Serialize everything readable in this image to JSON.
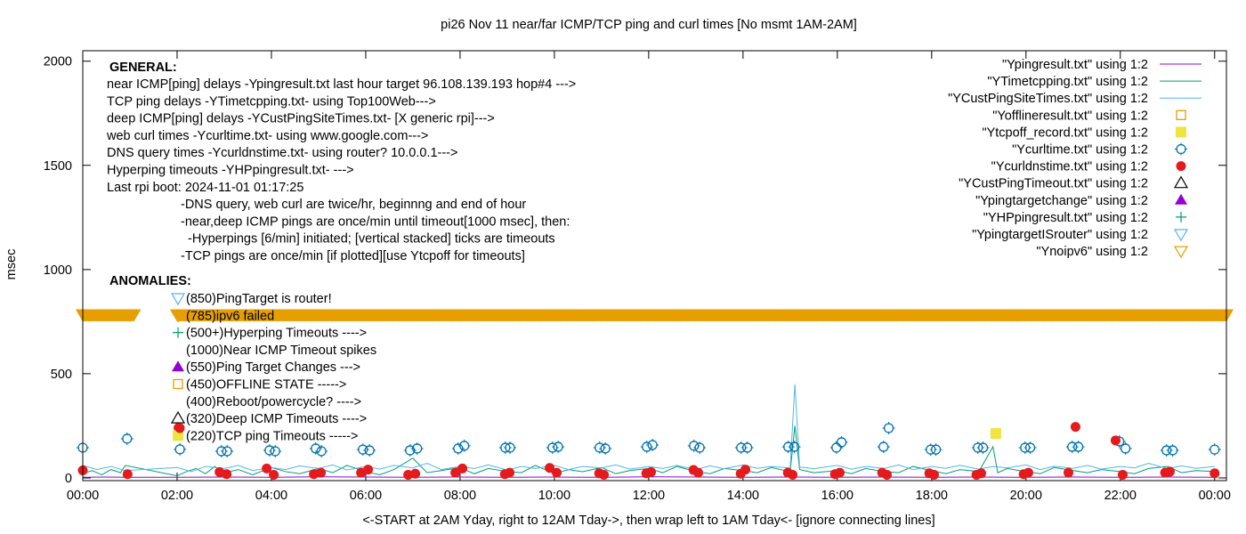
{
  "chart_data": {
    "type": "line",
    "title": "pi26 Nov 11  near/far ICMP/TCP ping and curl times [No msmt 1AM-2AM]",
    "xlabel": "<-START at 2AM Yday, right to 12AM Tday->, then wrap left to 1AM Tday<- [ignore connecting lines]",
    "ylabel": "msec",
    "xlim": [
      0,
      24.25
    ],
    "ylim": [
      -13,
      2050
    ],
    "x_ticks": [
      "00:00",
      "02:00",
      "04:00",
      "06:00",
      "08:00",
      "10:00",
      "12:00",
      "14:00",
      "16:00",
      "18:00",
      "20:00",
      "22:00",
      "00:00"
    ],
    "y_ticks": [
      0,
      500,
      1000,
      1500,
      2000
    ],
    "grid": false,
    "legend_placement": "top-right",
    "notes_general": {
      "heading": "GENERAL:",
      "lines": [
        "near ICMP[ping] delays -Ypingresult.txt last hour target 96.108.139.193 hop#4 --->",
        "TCP ping delays -YTimetcpping.txt- using Top100Web--->",
        "deep ICMP[ping] delays -YCustPingSiteTimes.txt- [X generic rpi]--->",
        "web curl times -Ycurltime.txt- using www.google.com--->",
        "DNS query times -Ycurldnstime.txt- using router? 10.0.0.1--->",
        "Hyperping timeouts -YHPpingresult.txt- --->",
        "Last rpi boot: 2024-11-01 01:17:25"
      ],
      "indented": [
        "-DNS query, web curl are twice/hr, beginnng and end of hour",
        "-near,deep ICMP pings are once/min until timeout[1000 msec], then:",
        "  -Hyperpings [6/min] initiated; [vertical stacked] ticks are timeouts",
        "-TCP pings are once/min [if plotted][use Ytcpoff for timeouts]"
      ]
    },
    "notes_anomalies": {
      "heading": "ANOMALIES:",
      "items": [
        {
          "marker": "triangle-down-open",
          "color": "#56b4e9",
          "text": "(850)PingTarget is router!"
        },
        {
          "marker": "triangle-down-open",
          "color": "#e69f00",
          "text": "(785)ipv6 failed"
        },
        {
          "marker": "plus",
          "color": "#009e73",
          "text": "(500+)Hyperping Timeouts ---->"
        },
        {
          "marker": "none",
          "color": "",
          "text": "(1000)Near ICMP Timeout spikes"
        },
        {
          "marker": "triangle-up-filled",
          "color": "#9400d3",
          "text": "(550)Ping Target Changes --->"
        },
        {
          "marker": "square-open",
          "color": "#e69f00",
          "text": "(450)OFFLINE STATE ----->"
        },
        {
          "marker": "none",
          "color": "",
          "text": "(400)Reboot/powercycle? ---->"
        },
        {
          "marker": "triangle-up-open",
          "color": "#000000",
          "text": "(320)Deep ICMP Timeouts ---->"
        },
        {
          "marker": "square-filled",
          "color": "#f0e442",
          "text": "(220)TCP ping Timeouts ----->"
        }
      ]
    },
    "series": [
      {
        "name": "\"Ypingresult.txt\" using 1:2",
        "style": "line",
        "color": "#9400d3",
        "x": [
          0,
          0.5,
          0.9,
          2.0,
          3,
          4,
          5,
          6,
          7,
          8,
          9,
          10,
          11,
          12,
          13,
          14,
          15,
          16,
          17,
          18,
          19,
          20,
          21,
          22,
          23,
          24
        ],
        "y": [
          3,
          4,
          3,
          3,
          4,
          3,
          5,
          4,
          3,
          4,
          3,
          4,
          3,
          5,
          4,
          3,
          4,
          3,
          4,
          3,
          4,
          3,
          4,
          3,
          4,
          3
        ]
      },
      {
        "name": "\"YTimetcpping.txt\" using 1:2",
        "style": "line",
        "color": "#009e73",
        "x": [
          0,
          0.2,
          0.4,
          0.6,
          0.8,
          0.9,
          2.0,
          2.2,
          2.4,
          2.6,
          2.8,
          3,
          3.3,
          3.6,
          4,
          4.3,
          4.6,
          5,
          5.3,
          5.6,
          6,
          6.3,
          6.6,
          7,
          7.3,
          7.6,
          8,
          8.3,
          8.6,
          9,
          9.3,
          9.6,
          10,
          10.3,
          10.6,
          11,
          11.3,
          11.6,
          12,
          12.3,
          12.6,
          13,
          13.3,
          13.6,
          14,
          14.3,
          14.6,
          15,
          15.1,
          15.2,
          15.5,
          16,
          16.3,
          16.6,
          17,
          17.3,
          17.6,
          18,
          18.3,
          18.6,
          19,
          19.3,
          19.4,
          19.6,
          20,
          20.3,
          20.6,
          21,
          21.3,
          21.6,
          22,
          22.3,
          22.6,
          23,
          23.3,
          23.6,
          24
        ],
        "y": [
          20,
          35,
          15,
          40,
          25,
          60,
          10,
          30,
          45,
          20,
          55,
          25,
          40,
          15,
          50,
          30,
          20,
          45,
          25,
          60,
          30,
          15,
          40,
          95,
          25,
          35,
          50,
          20,
          45,
          30,
          25,
          60,
          20,
          40,
          30,
          50,
          20,
          35,
          45,
          25,
          55,
          30,
          20,
          45,
          35,
          25,
          50,
          30,
          250,
          40,
          25,
          35,
          20,
          45,
          30,
          25,
          55,
          35,
          20,
          40,
          30,
          150,
          25,
          45,
          30,
          20,
          50,
          35,
          25,
          40,
          30,
          20,
          45,
          55,
          25,
          35,
          30
        ]
      },
      {
        "name": "\"YCustPingSiteTimes.txt\" using 1:2",
        "style": "line",
        "color": "#56b4e9",
        "x": [
          0,
          0.3,
          0.6,
          0.9,
          2.0,
          2.3,
          2.6,
          3,
          3.3,
          3.6,
          4,
          4.3,
          4.6,
          5,
          5.3,
          5.6,
          6,
          6.3,
          6.6,
          7,
          7.3,
          7.6,
          8,
          8.3,
          8.6,
          9,
          9.3,
          9.6,
          10,
          10.3,
          10.6,
          11,
          11.3,
          11.6,
          12,
          12.3,
          12.6,
          13,
          13.3,
          13.6,
          14,
          14.3,
          14.6,
          15,
          15.1,
          15.2,
          15.5,
          16,
          16.3,
          16.6,
          17,
          17.3,
          17.6,
          18,
          18.3,
          18.6,
          19,
          19.3,
          19.6,
          20,
          20.3,
          20.6,
          21,
          21.3,
          21.6,
          22,
          22.3,
          22.6,
          23,
          23.3,
          23.6,
          24
        ],
        "y": [
          60,
          40,
          55,
          35,
          50,
          30,
          55,
          45,
          60,
          35,
          50,
          40,
          58,
          45,
          62,
          38,
          55,
          42,
          60,
          48,
          70,
          40,
          55,
          45,
          62,
          38,
          55,
          45,
          60,
          40,
          55,
          48,
          62,
          42,
          55,
          45,
          60,
          40,
          58,
          44,
          62,
          46,
          55,
          48,
          450,
          52,
          44,
          60,
          42,
          55,
          46,
          62,
          40,
          55,
          46,
          60,
          42,
          55,
          48,
          62,
          40,
          56,
          46,
          60,
          42,
          55,
          48,
          70,
          44,
          58,
          46,
          55
        ]
      },
      {
        "name": "\"Yofflineresult.txt\" using 1:2",
        "style": "square-open",
        "color": "#e69f00",
        "x": [],
        "y": []
      },
      {
        "name": "\"Ytcpoff_record.txt\" using 1:2",
        "style": "square-filled",
        "color": "#f0e442",
        "x": [
          19.36
        ],
        "y": [
          213
        ]
      },
      {
        "name": "\"Ycurltime.txt\" using 1:2",
        "style": "circle-open",
        "color": "#0072b2",
        "x": [
          0,
          0.94,
          2.06,
          2.94,
          3.06,
          3.96,
          4.08,
          4.94,
          5.06,
          5.94,
          6.08,
          6.94,
          7.09,
          7.96,
          8.09,
          8.96,
          9.06,
          9.96,
          10.08,
          10.96,
          11.08,
          11.96,
          12.08,
          12.96,
          13.08,
          13.96,
          14.09,
          14.96,
          15.09,
          15.98,
          16.09,
          16.98,
          17.09,
          17.98,
          18.09,
          18.98,
          19.09,
          19.98,
          20.09,
          20.98,
          21.11,
          21.98,
          22.11,
          22.98,
          23.11,
          24.0
        ],
        "y": [
          145,
          188,
          137,
          128,
          128,
          132,
          128,
          141,
          128,
          136,
          132,
          132,
          141,
          141,
          154,
          145,
          145,
          145,
          149,
          145,
          141,
          149,
          158,
          154,
          145,
          145,
          145,
          149,
          149,
          145,
          171,
          149,
          239,
          136,
          136,
          145,
          145,
          145,
          145,
          149,
          149,
          175,
          141,
          132,
          132,
          136
        ]
      },
      {
        "name": "\"Ycurldnstime.txt\" using 1:2",
        "style": "circle-filled",
        "color": "#e41a1c",
        "x": [
          0.0,
          0.95,
          2.03,
          2.9,
          3.05,
          3.9,
          4.05,
          4.9,
          5.05,
          5.9,
          6.05,
          6.9,
          7.05,
          7.9,
          8.05,
          8.95,
          9.05,
          9.9,
          10.05,
          10.95,
          11.05,
          11.95,
          12.05,
          12.95,
          13.05,
          13.95,
          14.05,
          14.95,
          15.05,
          15.95,
          16.05,
          16.95,
          17.05,
          17.95,
          18.05,
          18.95,
          19.05,
          19.95,
          20.05,
          20.9,
          21.05,
          21.9,
          22.05,
          22.95,
          23.05,
          24.0
        ],
        "y": [
          36,
          18,
          240,
          28,
          18,
          45,
          15,
          18,
          25,
          25,
          40,
          15,
          20,
          25,
          45,
          18,
          25,
          48,
          25,
          22,
          15,
          22,
          28,
          38,
          25,
          20,
          40,
          25,
          15,
          18,
          25,
          25,
          15,
          22,
          15,
          15,
          22,
          18,
          25,
          25,
          245,
          180,
          15,
          25,
          30,
          22
        ]
      },
      {
        "name": "\"YCustPingTimeout.txt\" using 1:2",
        "style": "triangle-up-open",
        "color": "#000000",
        "x": [],
        "y": []
      },
      {
        "name": "\"Ypingtargetchange\" using 1:2",
        "style": "triangle-up-filled",
        "color": "#9400d3",
        "x": [],
        "y": []
      },
      {
        "name": "\"YHPpingresult.txt\" using 1:2",
        "style": "plus",
        "color": "#009e73",
        "x": [],
        "y": []
      },
      {
        "name": "\"YpingtargetISrouter\" using 1:2",
        "style": "triangle-down-open",
        "color": "#56b4e9",
        "x": [],
        "y": []
      },
      {
        "name": "\"Ynoipv6\" using 1:2",
        "style": "triangle-down-open",
        "color": "#e69f00",
        "x_ranges": [
          [
            0,
            1.1
          ],
          [
            2.0,
            24.25
          ]
        ],
        "y_value": 785
      }
    ]
  }
}
